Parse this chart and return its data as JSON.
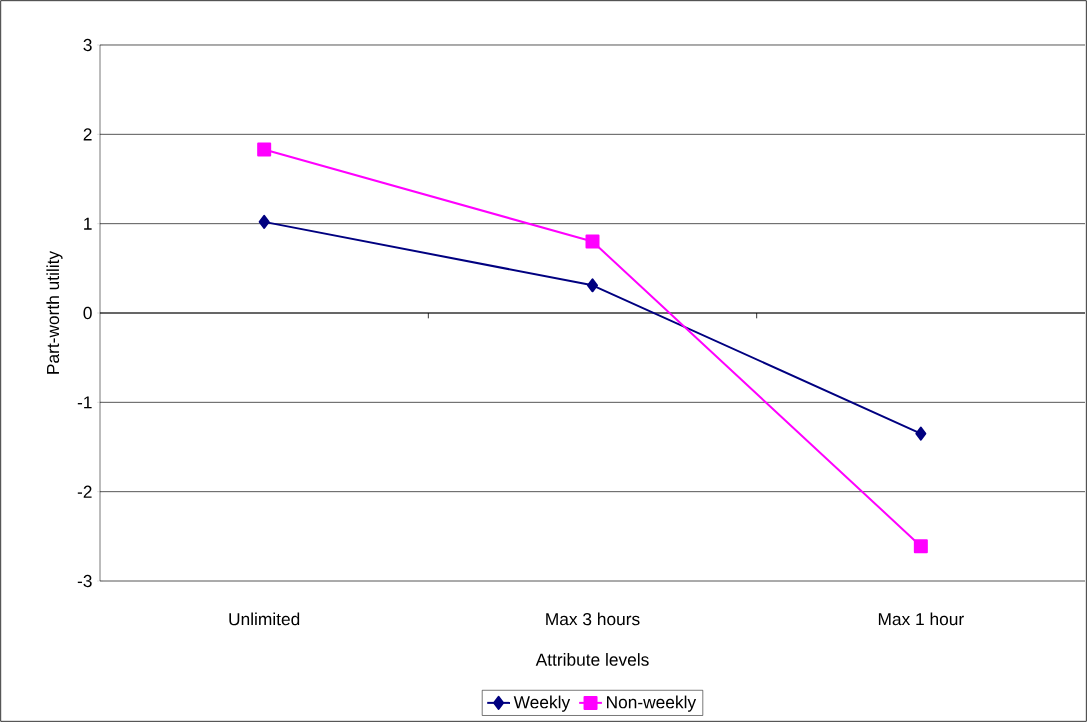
{
  "chart_data": {
    "type": "line",
    "xlabel": "Attribute levels",
    "ylabel": "Part-worth utility",
    "categories": [
      "Unlimited",
      "Max 3 hours",
      "Max 1 hour"
    ],
    "series": [
      {
        "name": "Weekly",
        "color": "#000080",
        "marker": "diamond",
        "values": [
          1.02,
          0.31,
          -1.35
        ]
      },
      {
        "name": "Non-weekly",
        "color": "#ff00ff",
        "marker": "square",
        "values": [
          1.83,
          0.8,
          -2.61
        ]
      }
    ],
    "ylim": [
      -3,
      3
    ],
    "yticks": [
      -3,
      -2,
      -1,
      0,
      1,
      2,
      3
    ],
    "grid": "y",
    "legend": "bottom"
  }
}
